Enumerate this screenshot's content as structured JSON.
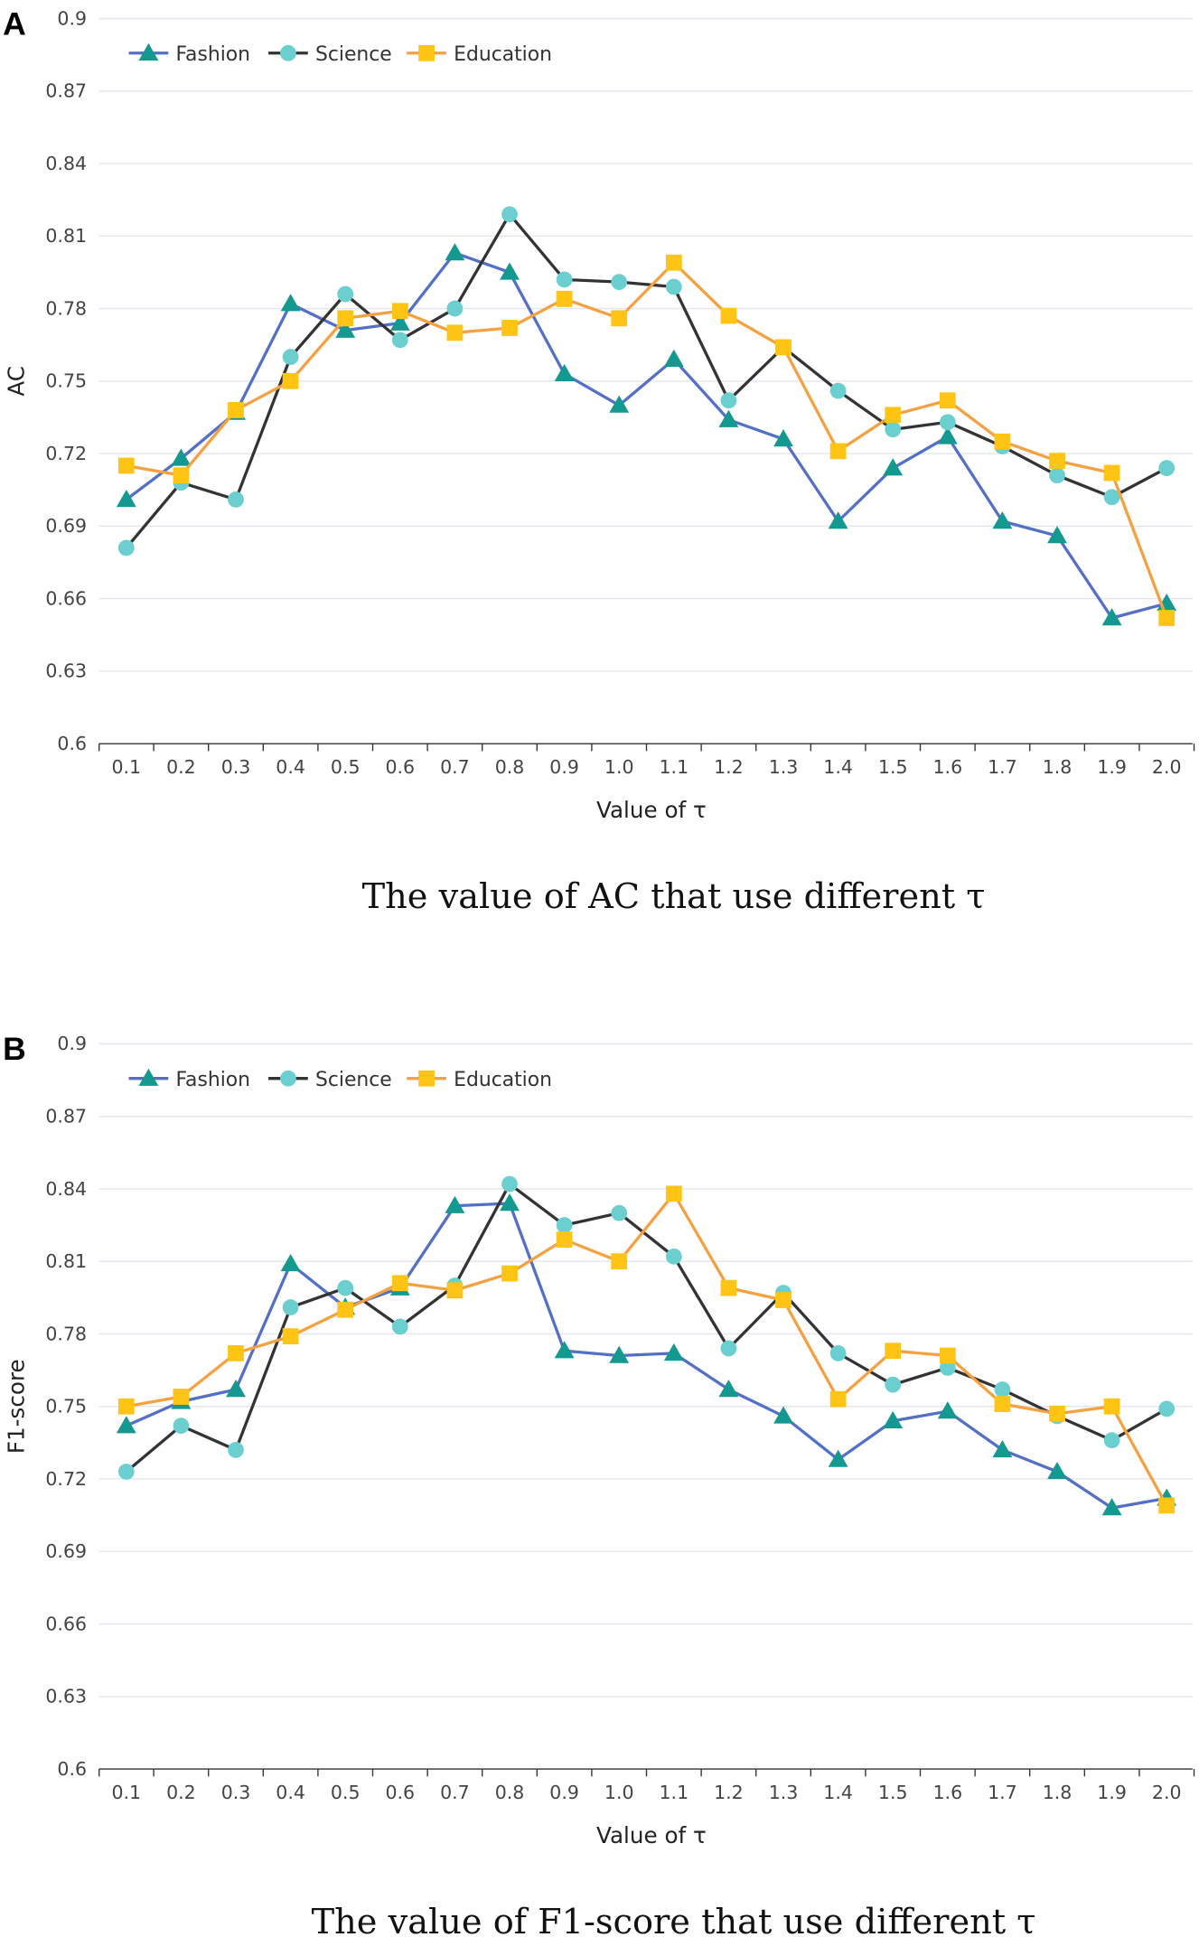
{
  "colors": {
    "Fashion": {
      "line": "#5470c6",
      "marker": "#13998f"
    },
    "Science": {
      "line": "#333333",
      "marker": "#6ccfcf"
    },
    "Education": {
      "line": "#f5a142",
      "marker": "#ffc414"
    },
    "grid": "#e3e6ee"
  },
  "chart_data": [
    {
      "type": "line",
      "panel_label": "A",
      "title": "The value of AC that use different τ",
      "xlabel": "Value of  τ",
      "ylabel": "AC",
      "ylim": [
        0.6,
        0.9
      ],
      "yticks": [
        "0.6",
        "0.63",
        "0.66",
        "0.69",
        "0.72",
        "0.75",
        "0.78",
        "0.81",
        "0.84",
        "0.87",
        "0.9"
      ],
      "categories": [
        "0.1",
        "0.2",
        "0.3",
        "0.4",
        "0.5",
        "0.6",
        "0.7",
        "0.8",
        "0.9",
        "1.0",
        "1.1",
        "1.2",
        "1.3",
        "1.4",
        "1.5",
        "1.6",
        "1.7",
        "1.8",
        "1.9",
        "2.0"
      ],
      "legend_position": "top-left",
      "grid": true,
      "series": [
        {
          "name": "Fashion",
          "marker": "triangle",
          "values": [
            0.701,
            0.718,
            0.737,
            0.782,
            0.771,
            0.774,
            0.803,
            0.795,
            0.753,
            0.74,
            0.759,
            0.734,
            0.726,
            0.692,
            0.714,
            0.727,
            0.692,
            0.686,
            0.652,
            0.658
          ]
        },
        {
          "name": "Science",
          "marker": "circle",
          "values": [
            0.681,
            0.708,
            0.701,
            0.76,
            0.786,
            0.767,
            0.78,
            0.819,
            0.792,
            0.791,
            0.789,
            0.742,
            0.764,
            0.746,
            0.73,
            0.733,
            0.723,
            0.711,
            0.702,
            0.714
          ]
        },
        {
          "name": "Education",
          "marker": "square",
          "values": [
            0.715,
            0.711,
            0.738,
            0.75,
            0.776,
            0.779,
            0.77,
            0.772,
            0.784,
            0.776,
            0.799,
            0.777,
            0.764,
            0.721,
            0.736,
            0.742,
            0.725,
            0.717,
            0.712,
            0.652
          ]
        }
      ]
    },
    {
      "type": "line",
      "panel_label": "B",
      "title": "The value of F1-score that use different τ",
      "xlabel": "Value of  τ",
      "ylabel": "F1-score",
      "ylim": [
        0.6,
        0.9
      ],
      "yticks": [
        "0.6",
        "0.63",
        "0.66",
        "0.69",
        "0.72",
        "0.75",
        "0.78",
        "0.81",
        "0.84",
        "0.87",
        "0.9"
      ],
      "categories": [
        "0.1",
        "0.2",
        "0.3",
        "0.4",
        "0.5",
        "0.6",
        "0.7",
        "0.8",
        "0.9",
        "1.0",
        "1.1",
        "1.2",
        "1.3",
        "1.4",
        "1.5",
        "1.6",
        "1.7",
        "1.8",
        "1.9",
        "2.0"
      ],
      "legend_position": "top-left",
      "grid": true,
      "series": [
        {
          "name": "Fashion",
          "marker": "triangle",
          "values": [
            0.742,
            0.752,
            0.757,
            0.809,
            0.791,
            0.799,
            0.833,
            0.834,
            0.773,
            0.771,
            0.772,
            0.757,
            0.746,
            0.728,
            0.744,
            0.748,
            0.732,
            0.723,
            0.708,
            0.712
          ]
        },
        {
          "name": "Science",
          "marker": "circle",
          "values": [
            0.723,
            0.742,
            0.732,
            0.791,
            0.799,
            0.783,
            0.8,
            0.842,
            0.825,
            0.83,
            0.812,
            0.774,
            0.797,
            0.772,
            0.759,
            0.766,
            0.757,
            0.746,
            0.736,
            0.749
          ]
        },
        {
          "name": "Education",
          "marker": "square",
          "values": [
            0.75,
            0.754,
            0.772,
            0.779,
            0.79,
            0.801,
            0.798,
            0.805,
            0.819,
            0.81,
            0.838,
            0.799,
            0.794,
            0.753,
            0.773,
            0.771,
            0.751,
            0.747,
            0.75,
            0.709
          ]
        }
      ]
    }
  ]
}
